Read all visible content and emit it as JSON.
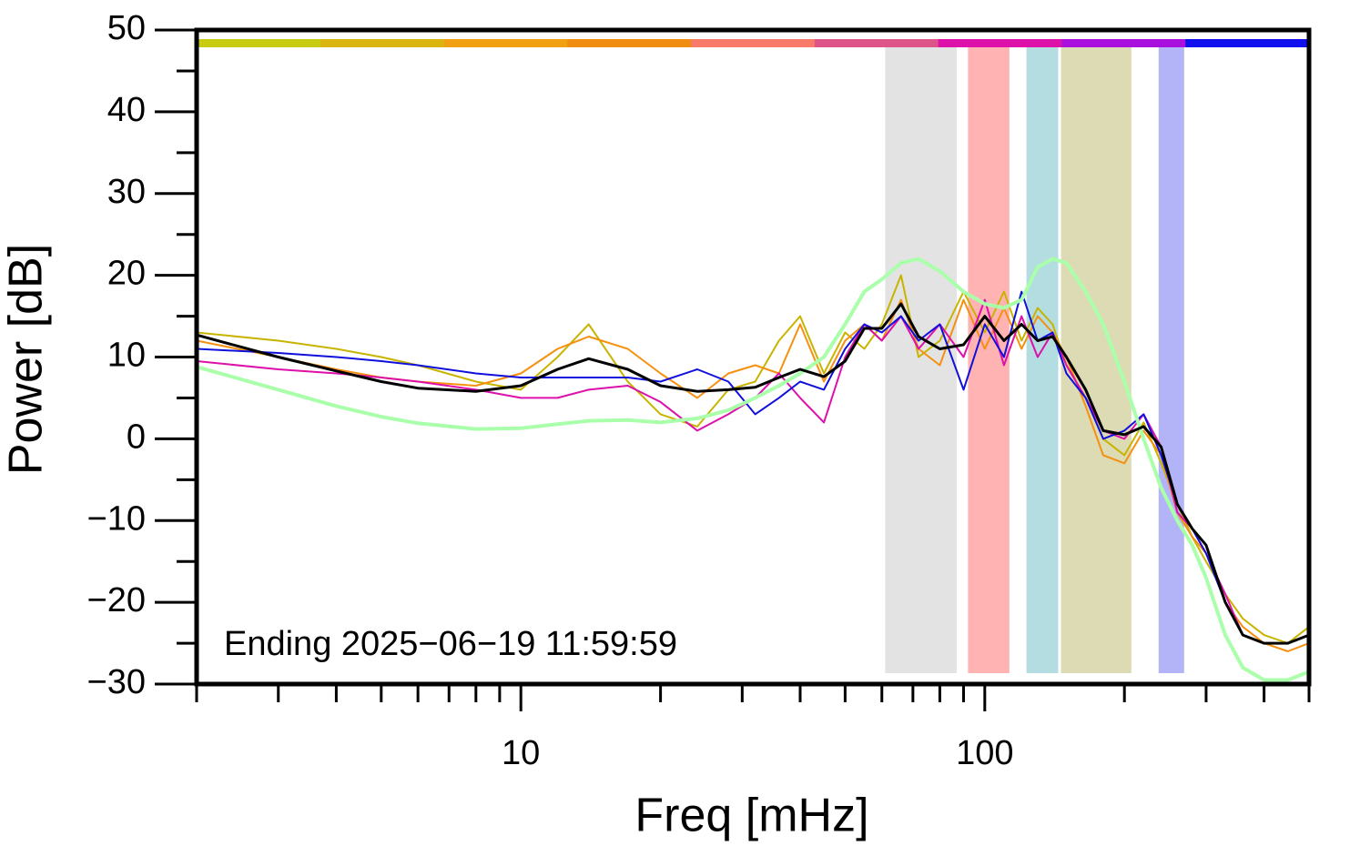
{
  "chart_data": {
    "type": "line",
    "xlabel": "Freq [mHz]",
    "ylabel": "Power [dB]",
    "annotation": "Ending 2025−06−19 11:59:59",
    "xscale": "log",
    "xlim": [
      2,
      500
    ],
    "ylim": [
      -30,
      50
    ],
    "xticks": [
      10,
      100
    ],
    "xminorticks": [
      2,
      3,
      4,
      5,
      6,
      7,
      8,
      9,
      20,
      30,
      40,
      50,
      60,
      70,
      80,
      90,
      200,
      300,
      400,
      500
    ],
    "yticks": [
      {
        "value": -30,
        "label": "−30"
      },
      {
        "value": -20,
        "label": "−20"
      },
      {
        "value": -10,
        "label": "−10"
      },
      0,
      10,
      20,
      30,
      40,
      50
    ],
    "yminorticks": [
      -25,
      -15,
      -5,
      5,
      15,
      25,
      35,
      45
    ],
    "color_bar": [
      "#c8cc10",
      "#dab510",
      "#f0a010",
      "#f08c10",
      "#f87a6a",
      "#dd5588",
      "#dd10aa",
      "#aa10dd",
      "#1010ee"
    ],
    "bands": [
      {
        "range": [
          61,
          87
        ],
        "color": "#e3e3e3"
      },
      {
        "range": [
          92,
          113
        ],
        "color": "#ffb3b3"
      },
      {
        "range": [
          123,
          144
        ],
        "color": "#b3dde0"
      },
      {
        "range": [
          146,
          207
        ],
        "color": "#dcdbb3"
      },
      {
        "range": [
          237,
          269
        ],
        "color": "#b3b3f7"
      }
    ],
    "x": [
      2,
      3,
      4,
      5,
      6,
      8,
      10,
      12,
      14,
      17,
      20,
      24,
      28,
      32,
      36,
      40,
      45,
      50,
      55,
      60,
      66,
      72,
      80,
      90,
      100,
      110,
      120,
      130,
      140,
      150,
      165,
      180,
      200,
      220,
      240,
      260,
      280,
      300,
      330,
      360,
      400,
      450,
      500
    ],
    "series": [
      {
        "color": "#c8b400",
        "width": 2,
        "values": [
          13,
          12,
          11,
          10,
          9,
          7,
          6,
          10,
          14,
          7,
          3,
          1.5,
          6,
          7,
          12,
          15,
          8,
          13,
          11,
          14,
          20,
          10,
          12,
          18,
          13,
          18,
          12,
          16,
          14,
          9,
          5,
          0,
          -2,
          2,
          -3,
          -8,
          -12,
          -15,
          -19,
          -22,
          -24,
          -25,
          -23
        ]
      },
      {
        "color": "#f59010",
        "width": 2,
        "values": [
          12,
          10,
          8.5,
          7.5,
          7,
          6.5,
          8,
          11,
          12.5,
          11,
          8,
          5,
          8,
          9,
          8,
          14,
          7,
          12,
          14,
          12,
          17,
          11,
          9,
          17,
          11,
          16,
          11,
          15,
          13,
          10,
          4,
          -2,
          -3,
          1,
          -2,
          -9,
          -12,
          -14,
          -20,
          -23,
          -25,
          -26,
          -25
        ]
      },
      {
        "color": "#dd10aa",
        "width": 2,
        "values": [
          9.5,
          8.5,
          8,
          7.5,
          7,
          6,
          5,
          5,
          6,
          6.5,
          4.5,
          1,
          3,
          5,
          8,
          5,
          2,
          10,
          14,
          12,
          15,
          11,
          14,
          10,
          17,
          9,
          15,
          10,
          13,
          9,
          5,
          1,
          0,
          3,
          -1,
          -9,
          -11,
          -14,
          -19,
          -24,
          -25,
          -25,
          -24
        ]
      },
      {
        "color": "#1010dd",
        "width": 2,
        "values": [
          11,
          10.5,
          10,
          9.5,
          9,
          8,
          7.5,
          7.5,
          7.5,
          7.5,
          7,
          8.5,
          7,
          3,
          5,
          7,
          6,
          11,
          14,
          13,
          15,
          12,
          14,
          6,
          14,
          10,
          18,
          12,
          13,
          8,
          5,
          0,
          1,
          3,
          -2,
          -8,
          -11,
          -14,
          -20,
          -24,
          -25,
          -25,
          -24
        ]
      },
      {
        "color": "#aaffaa",
        "width": 4,
        "values": [
          8.8,
          6,
          4,
          2.7,
          1.9,
          1.2,
          1.3,
          1.8,
          2.2,
          2.3,
          2,
          2.5,
          3.5,
          5,
          6.5,
          8,
          10,
          14,
          18,
          19.5,
          21.5,
          22,
          20.5,
          18,
          16.5,
          16,
          17,
          21,
          22,
          21.5,
          18,
          14,
          7,
          0,
          -6,
          -10,
          -13,
          -17,
          -24,
          -28,
          -29.5,
          -29.5,
          -28.5
        ]
      },
      {
        "color": "#000000",
        "width": 3,
        "values": [
          12.7,
          10,
          8.3,
          7,
          6.2,
          5.8,
          6.5,
          8.5,
          9.8,
          8.5,
          6.5,
          5.8,
          6,
          6.3,
          7.5,
          8.5,
          7.6,
          9.5,
          13.5,
          13.5,
          16.5,
          12.5,
          11,
          11.5,
          15,
          12,
          14,
          12,
          12.5,
          10,
          6,
          1,
          0.5,
          1.5,
          -1,
          -8,
          -11,
          -13,
          -20,
          -24,
          -25,
          -25,
          -24
        ]
      }
    ]
  }
}
